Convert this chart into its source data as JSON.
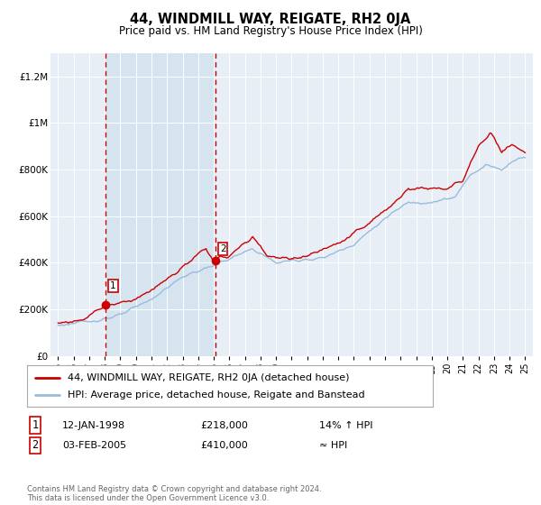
{
  "title": "44, WINDMILL WAY, REIGATE, RH2 0JA",
  "subtitle": "Price paid vs. HM Land Registry's House Price Index (HPI)",
  "ylabel_ticks": [
    "£0",
    "£200K",
    "£400K",
    "£600K",
    "£800K",
    "£1M",
    "£1.2M"
  ],
  "ylabel_values": [
    0,
    200000,
    400000,
    600000,
    800000,
    1000000,
    1200000
  ],
  "ylim": [
    0,
    1300000
  ],
  "sale1_year": 1998.04,
  "sale1_price": 218000,
  "sale2_year": 2005.09,
  "sale2_price": 410000,
  "line1_color": "#cc0000",
  "line2_color": "#99bbdd",
  "shade_color": "#d4e3f0",
  "vline_color": "#cc0000",
  "plot_bg": "#e8eef5",
  "legend_line1": "44, WINDMILL WAY, REIGATE, RH2 0JA (detached house)",
  "legend_line2": "HPI: Average price, detached house, Reigate and Banstead",
  "table_row1": [
    "1",
    "12-JAN-1998",
    "£218,000",
    "14% ↑ HPI"
  ],
  "table_row2": [
    "2",
    "03-FEB-2005",
    "£410,000",
    "≈ HPI"
  ],
  "footer": "Contains HM Land Registry data © Crown copyright and database right 2024.\nThis data is licensed under the Open Government Licence v3.0."
}
